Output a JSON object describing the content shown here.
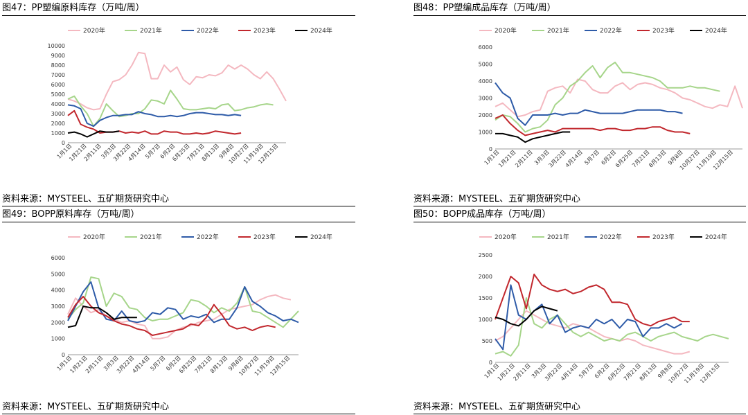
{
  "charts": [
    {
      "title": "图47：PP塑编原料库存（万吨/周）",
      "source": "资料来源：MYSTEEL、五矿期货研究中心",
      "chart_data": {
        "type": "line",
        "x_ticks": [
          "1月1日",
          "1月21日",
          "2月11日",
          "3月3日",
          "3月22日",
          "4月14日",
          "5月7日",
          "6月2日",
          "6月25日",
          "7月21日",
          "8月13日",
          "9月8日",
          "10月27日",
          "11月19日",
          "12月15日"
        ],
        "ylim": [
          0,
          10000
        ],
        "y_ticks": [
          0,
          1000,
          2000,
          3000,
          4000,
          5000,
          6000,
          7000,
          8000,
          9000,
          10000
        ],
        "grid": false,
        "legend_position": "top",
        "series": [
          {
            "name": "2020年",
            "color": "#f4b8c0",
            "values": [
              4500,
              4300,
              4000,
              3600,
              3400,
              3500,
              5000,
              6300,
              6500,
              7000,
              8000,
              9300,
              9200,
              6600,
              6600,
              8000,
              7300,
              7800,
              6500,
              6000,
              6800,
              6700,
              7000,
              6900,
              7200,
              8000,
              7600,
              8000,
              7600,
              7000,
              6600,
              7300,
              6600,
              5500,
              4300
            ]
          },
          {
            "name": "2021年",
            "color": "#a6d58a",
            "values": [
              4500,
              4800,
              3800,
              3000,
              1700,
              2500,
              4000,
              3300,
              2700,
              2800,
              3000,
              3000,
              3500,
              4400,
              4300,
              4000,
              5400,
              4500,
              3500,
              3400,
              3400,
              3500,
              3600,
              3500,
              3900,
              4000,
              3300,
              3400,
              3600,
              3700,
              3900,
              4000,
              3900
            ]
          },
          {
            "name": "2022年",
            "color": "#2e5ba8",
            "values": [
              3900,
              3800,
              3500,
              2000,
              1700,
              2300,
              2600,
              2800,
              2800,
              2900,
              2900,
              3200,
              3000,
              2900,
              2700,
              2700,
              2800,
              2700,
              2800,
              3000,
              3100,
              3100,
              3000,
              2900,
              2900,
              2800,
              2900,
              2800
            ]
          },
          {
            "name": "2023年",
            "color": "#c1272d",
            "values": [
              2800,
              3300,
              1900,
              1600,
              1400,
              1000,
              1100,
              1100,
              1200,
              1000,
              1100,
              1000,
              1200,
              900,
              900,
              1200,
              1100,
              1100,
              900,
              900,
              1000,
              900,
              1000,
              1200,
              1100,
              1000,
              900,
              1000
            ]
          },
          {
            "name": "2024年",
            "color": "#000000",
            "values": [
              1000,
              1100,
              900,
              600,
              900,
              1200,
              1100,
              1100,
              1200
            ]
          }
        ]
      }
    },
    {
      "title": "图48：PP塑编成品库存（万吨/周）",
      "source": "资料来源：MYSTEEL、五矿期货研究中心",
      "chart_data": {
        "type": "line",
        "x_ticks": [
          "1月1日",
          "1月21日",
          "2月11日",
          "3月3日",
          "3月22日",
          "4月14日",
          "5月7日",
          "6月2日",
          "6月25日",
          "7月21日",
          "8月13日",
          "9月8日",
          "10月27日",
          "11月19日",
          "12月15日"
        ],
        "ylim": [
          0,
          6000
        ],
        "y_ticks": [
          0,
          1000,
          2000,
          3000,
          4000,
          5000,
          6000
        ],
        "grid": false,
        "legend_position": "top",
        "series": [
          {
            "name": "2020年",
            "color": "#f4b8c0",
            "values": [
              2500,
              2700,
              2300,
              1900,
              2000,
              2200,
              2300,
              3400,
              3600,
              3700,
              3300,
              4100,
              4000,
              3500,
              3300,
              3300,
              3700,
              3900,
              3500,
              3800,
              3900,
              3800,
              3600,
              3500,
              3300,
              3000,
              2900,
              2700,
              2500,
              2400,
              2600,
              2500,
              3700,
              2400
            ]
          },
          {
            "name": "2021年",
            "color": "#a6d58a",
            "values": [
              1700,
              2000,
              1900,
              1500,
              1000,
              1200,
              1300,
              1700,
              2600,
              3000,
              3700,
              4000,
              4500,
              4900,
              4200,
              4800,
              5100,
              4500,
              4500,
              4400,
              4300,
              4200,
              4000,
              3600,
              3600,
              3600,
              3700,
              3600,
              3600,
              3500,
              3400
            ]
          },
          {
            "name": "2022年",
            "color": "#2e5ba8",
            "values": [
              3900,
              3300,
              3000,
              1800,
              1400,
              2000,
              2000,
              2000,
              2100,
              2000,
              2100,
              2100,
              2300,
              2200,
              2100,
              2100,
              2100,
              2100,
              2200,
              2300,
              2300,
              2300,
              2300,
              2200,
              2200,
              2100
            ]
          },
          {
            "name": "2023年",
            "color": "#c1272d",
            "values": [
              1800,
              2000,
              1500,
              1100,
              800,
              900,
              1000,
              1100,
              1000,
              1200,
              1200,
              1200,
              1200,
              1200,
              1100,
              1200,
              1200,
              1100,
              1100,
              1200,
              1200,
              1300,
              1300,
              1100,
              1000,
              1000,
              900
            ]
          },
          {
            "name": "2024年",
            "color": "#000000",
            "values": [
              900,
              900,
              800,
              700,
              400,
              600,
              700,
              800,
              900,
              1000,
              1000
            ]
          }
        ]
      }
    },
    {
      "title": "图49：BOPP原料库存（万吨/周）",
      "source": "资料来源：MYSTEEL、五矿期货研究中心",
      "chart_data": {
        "type": "line",
        "x_ticks": [
          "1月1日",
          "1月21日",
          "2月11日",
          "3月3日",
          "3月22日",
          "4月14日",
          "5月7日",
          "6月2日",
          "6月25日",
          "7月21日",
          "8月13日",
          "9月8日",
          "10月27日",
          "11月19日",
          "12月15日"
        ],
        "ylim": [
          0,
          6000
        ],
        "y_ticks": [
          0,
          1000,
          2000,
          3000,
          4000,
          5000,
          6000
        ],
        "grid": false,
        "legend_position": "top",
        "series": [
          {
            "name": "2020年",
            "color": "#f4b8c0",
            "values": [
              2500,
              3500,
              3000,
              2600,
              2800,
              2400,
              2200,
              2000,
              2100,
              1900,
              1800,
              1000,
              1000,
              1100,
              1500,
              1700,
              1800,
              2000,
              2100,
              2200,
              2500,
              2800,
              2900,
              3000,
              3100,
              3400,
              3600,
              3700,
              3500,
              3400
            ]
          },
          {
            "name": "2021年",
            "color": "#a6d58a",
            "values": [
              2200,
              2800,
              3200,
              4800,
              4700,
              3000,
              3800,
              3600,
              2900,
              2800,
              2300,
              2100,
              2200,
              2200,
              2400,
              2600,
              3400,
              3300,
              3000,
              2600,
              2900,
              2700,
              3200,
              4200,
              2700,
              2600,
              2300,
              2000,
              1700,
              2200,
              2700
            ]
          },
          {
            "name": "2022年",
            "color": "#2e5ba8",
            "values": [
              2100,
              3000,
              3900,
              4500,
              2900,
              2200,
              2100,
              2700,
              2100,
              2000,
              2100,
              2600,
              2500,
              2900,
              2800,
              2200,
              2400,
              2300,
              2500,
              2000,
              2200,
              2200,
              2900,
              4200,
              3300,
              3000,
              2600,
              2400,
              2100,
              2200,
              2000
            ]
          },
          {
            "name": "2023年",
            "color": "#c1272d",
            "values": [
              2300,
              3100,
              3600,
              3000,
              2600,
              2400,
              2100,
              1900,
              1800,
              1600,
              1500,
              1200,
              1300,
              1400,
              1500,
              1600,
              1900,
              1800,
              2300,
              3100,
              2500,
              1800,
              1600,
              1700,
              1500,
              1700,
              1800,
              1700
            ]
          },
          {
            "name": "2024年",
            "color": "#000000",
            "values": [
              1700,
              1800,
              3000,
              2900,
              2900,
              2600,
              2200,
              2300,
              2300,
              2300
            ]
          }
        ]
      }
    },
    {
      "title": "图50：BOPP成品库存（万吨/周）",
      "source": "资料来源：MYSTEEL、五矿期货研究中心",
      "chart_data": {
        "type": "line",
        "x_ticks": [
          "1月1日",
          "1月21日",
          "2月11日",
          "3月3日",
          "3月22日",
          "4月14日",
          "5月7日",
          "6月2日",
          "6月25日",
          "7月21日",
          "8月13日",
          "9月8日",
          "10月27日",
          "11月19日",
          "12月15日"
        ],
        "ylim": [
          0,
          2500
        ],
        "y_ticks": [
          0,
          500,
          1000,
          1500,
          2000,
          2500
        ],
        "grid": false,
        "legend_position": "top",
        "series": [
          {
            "name": "2020年",
            "color": "#f4b8c0",
            "values": [
              500,
              600,
              800,
              1000,
              1200,
              1100,
              1000,
              900,
              850,
              800,
              900,
              850,
              800,
              700,
              600,
              550,
              500,
              550,
              500,
              400,
              350,
              300,
              250,
              200,
              200,
              250
            ]
          },
          {
            "name": "2021年",
            "color": "#a6d58a",
            "values": [
              200,
              250,
              150,
              400,
              1500,
              900,
              800,
              1000,
              1100,
              900,
              700,
              600,
              700,
              600,
              500,
              550,
              500,
              650,
              700,
              600,
              500,
              600,
              650,
              700,
              600,
              550,
              500,
              600,
              650,
              600,
              550
            ]
          },
          {
            "name": "2022年",
            "color": "#2e5ba8",
            "values": [
              550,
              300,
              1800,
              1100,
              1000,
              1200,
              1350,
              900,
              1100,
              700,
              800,
              850,
              800,
              1000,
              900,
              1000,
              800,
              1000,
              950,
              600,
              800,
              800,
              900,
              800,
              900
            ]
          },
          {
            "name": "2023年",
            "color": "#c1272d",
            "values": [
              1000,
              1500,
              2000,
              1850,
              1250,
              2050,
              1800,
              1700,
              1650,
              1700,
              1600,
              1650,
              1750,
              1800,
              1700,
              1400,
              1400,
              1350,
              1000,
              900,
              850,
              950,
              1000,
              1050,
              950,
              950
            ]
          },
          {
            "name": "2024年",
            "color": "#000000",
            "values": [
              1050,
              1000,
              900,
              850,
              1000,
              1200,
              1300,
              1250,
              1200
            ]
          }
        ]
      }
    }
  ]
}
